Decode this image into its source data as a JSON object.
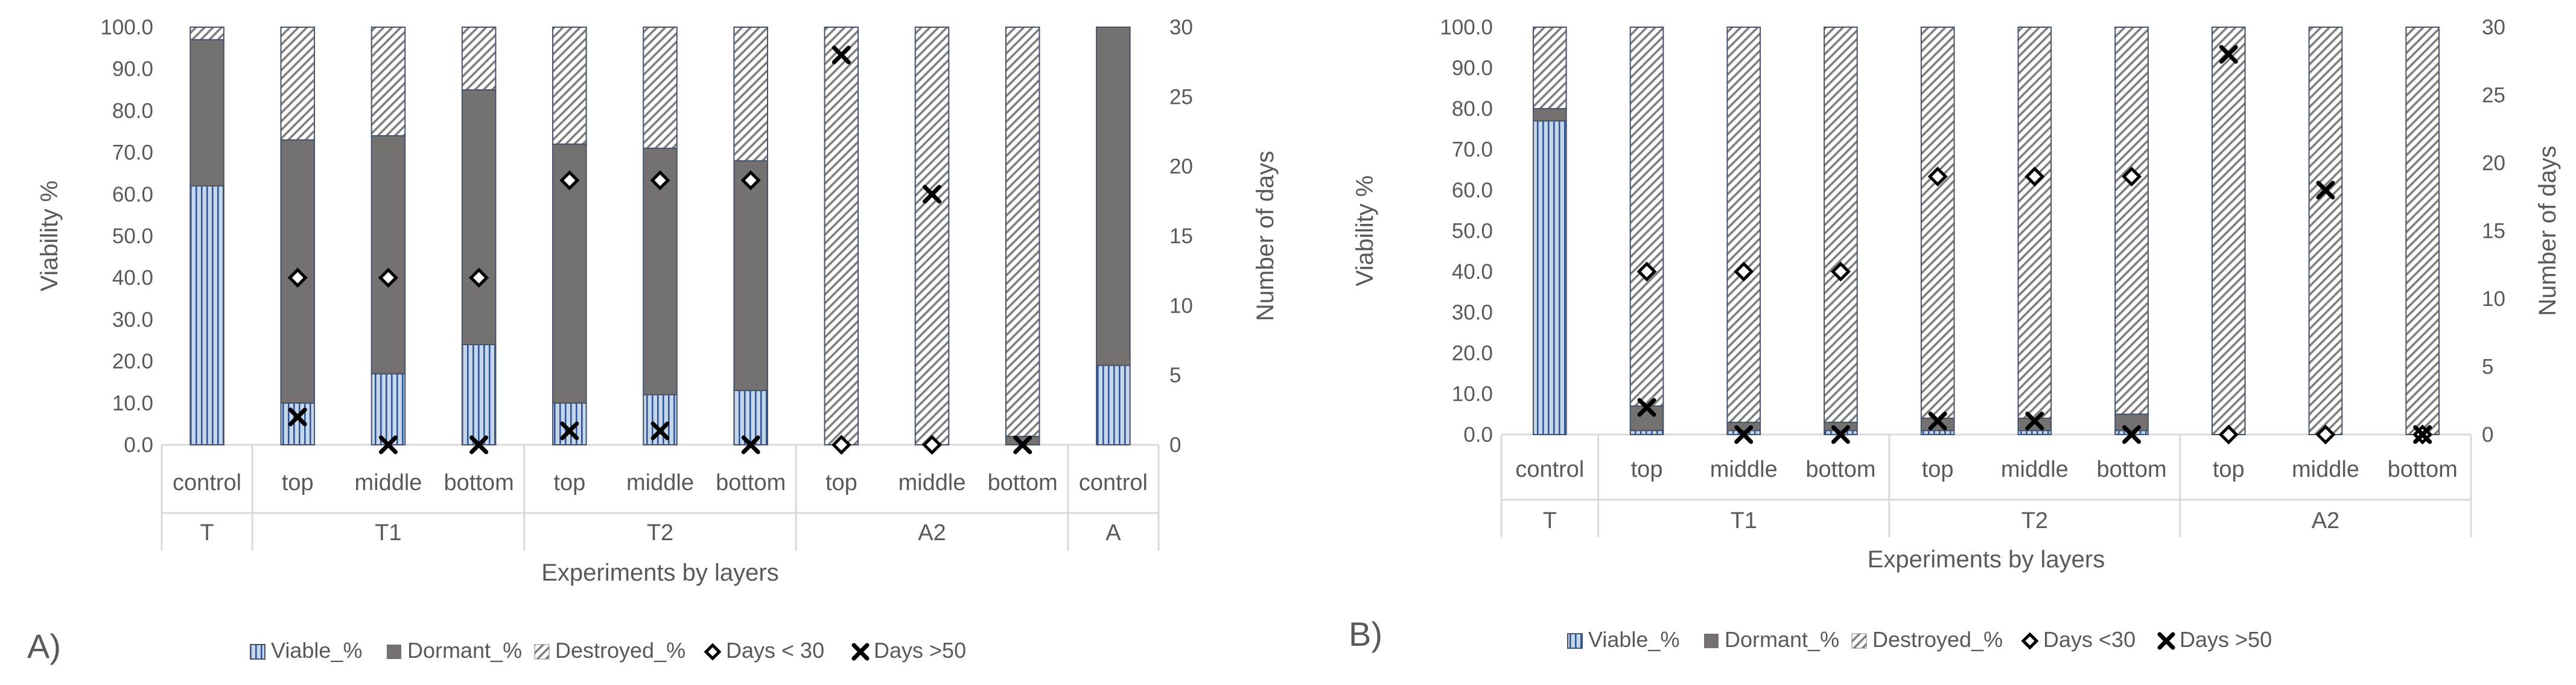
{
  "colors": {
    "viable_fill": "#c5d5ea",
    "viable_stripe": "#2f5597",
    "dormant": "#767171",
    "destroyed_fill": "#ffffff",
    "destroyed_hatch": "#7f7f7f",
    "axis": "#d9d9d9",
    "text": "#595959",
    "marker": "#000000"
  },
  "legend_labels": {
    "viable": "Viable_%",
    "dormant": "Dormant_%",
    "destroyed": "Destroyed_%"
  },
  "chart_data": [
    {
      "type": "bar",
      "subtype": "stacked-bar-with-markers",
      "panel_label": "A)",
      "xlabel": "Experiments by layers",
      "ylabel": "Viability %",
      "y2label": "Number of days",
      "ylim": [
        0,
        100
      ],
      "ytick_step": 10,
      "y2lim": [
        0,
        30
      ],
      "y2tick_step": 5,
      "categories": [
        "control",
        "top",
        "middle",
        "bottom",
        "top",
        "middle",
        "bottom",
        "top",
        "middle",
        "bottom",
        "control"
      ],
      "groups": [
        {
          "label": "T",
          "span": 1
        },
        {
          "label": "T1",
          "span": 3
        },
        {
          "label": "T2",
          "span": 3
        },
        {
          "label": "A2",
          "span": 3
        },
        {
          "label": "A",
          "span": 1
        }
      ],
      "series": [
        {
          "name": "Viable_%",
          "values": [
            62,
            10,
            17,
            24,
            10,
            12,
            13,
            0,
            0,
            0,
            19
          ]
        },
        {
          "name": "Dormant_%",
          "values": [
            35,
            63,
            57,
            61,
            62,
            59,
            55,
            0,
            0,
            2,
            81
          ]
        },
        {
          "name": "Destroyed_%",
          "values": [
            3,
            27,
            26,
            15,
            28,
            29,
            32,
            100,
            100,
            98,
            0
          ]
        }
      ],
      "markers": [
        {
          "name": "Days < 30",
          "shape": "diamond",
          "values": [
            null,
            12,
            12,
            12,
            19,
            19,
            19,
            0,
            0,
            null,
            null
          ]
        },
        {
          "name": "Days >50",
          "shape": "cross",
          "values": [
            null,
            2,
            0,
            0,
            1,
            1,
            0,
            28,
            18,
            0,
            null
          ]
        }
      ]
    },
    {
      "type": "bar",
      "subtype": "stacked-bar-with-markers",
      "panel_label": "B)",
      "xlabel": "Experiments by layers",
      "ylabel": "Viability %",
      "y2label": "Number of days",
      "ylim": [
        0,
        100
      ],
      "ytick_step": 10,
      "y2lim": [
        0,
        30
      ],
      "y2tick_step": 5,
      "categories": [
        "control",
        "top",
        "middle",
        "bottom",
        "top",
        "middle",
        "bottom",
        "top",
        "middle",
        "bottom"
      ],
      "groups": [
        {
          "label": "T",
          "span": 1
        },
        {
          "label": "T1",
          "span": 3
        },
        {
          "label": "T2",
          "span": 3
        },
        {
          "label": "A2",
          "span": 3
        }
      ],
      "series": [
        {
          "name": "Viable_%",
          "values": [
            77,
            1,
            1,
            1,
            1,
            1,
            1,
            0,
            0,
            0
          ]
        },
        {
          "name": "Dormant_%",
          "values": [
            3,
            6,
            2,
            2,
            3,
            3,
            4,
            0,
            0,
            0
          ]
        },
        {
          "name": "Destroyed_%",
          "values": [
            20,
            93,
            97,
            97,
            96,
            96,
            95,
            100,
            100,
            100
          ]
        }
      ],
      "markers": [
        {
          "name": "Days <30",
          "shape": "diamond",
          "values": [
            null,
            12,
            12,
            12,
            19,
            19,
            19,
            0,
            0,
            0
          ]
        },
        {
          "name": "Days >50",
          "shape": "cross",
          "values": [
            null,
            2,
            0,
            0,
            1,
            1,
            0,
            28,
            18,
            0
          ]
        }
      ]
    }
  ]
}
